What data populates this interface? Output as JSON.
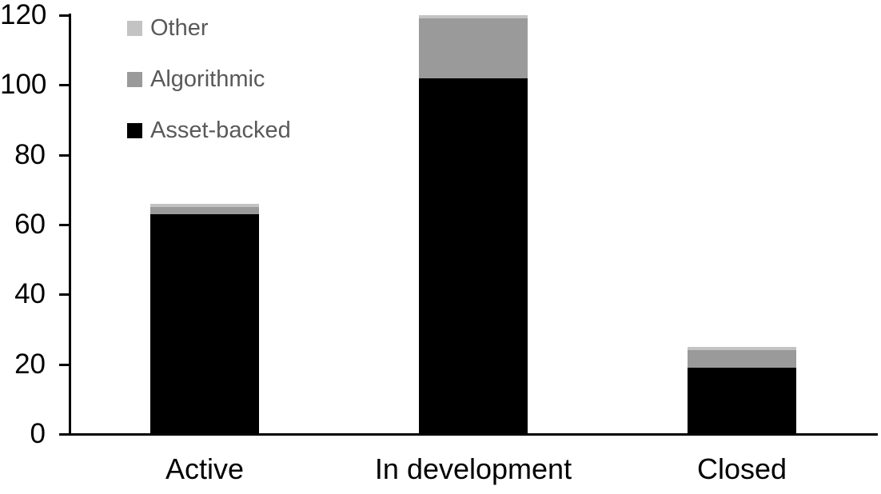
{
  "chart_data": {
    "type": "bar",
    "stacked": true,
    "title": "",
    "xlabel": "",
    "ylabel": "",
    "categories": [
      "Active",
      "In development",
      "Closed"
    ],
    "series": [
      {
        "name": "Asset-backed",
        "color": "#000000",
        "values": [
          63,
          102,
          19
        ]
      },
      {
        "name": "Algorithmic",
        "color": "#9a9a9a",
        "values": [
          2,
          17,
          5
        ]
      },
      {
        "name": "Other",
        "color": "#c3c3c3",
        "values": [
          1,
          1,
          1
        ]
      }
    ],
    "stack_totals": [
      66,
      120,
      25
    ],
    "ylim": [
      0,
      120
    ],
    "yticks": [
      0,
      20,
      40,
      60,
      80,
      100,
      120
    ],
    "grid": false,
    "legend": {
      "position": "top-left",
      "items": [
        "Other",
        "Algorithmic",
        "Asset-backed"
      ],
      "text_color": "#595959"
    },
    "axis_color": "#000000"
  }
}
